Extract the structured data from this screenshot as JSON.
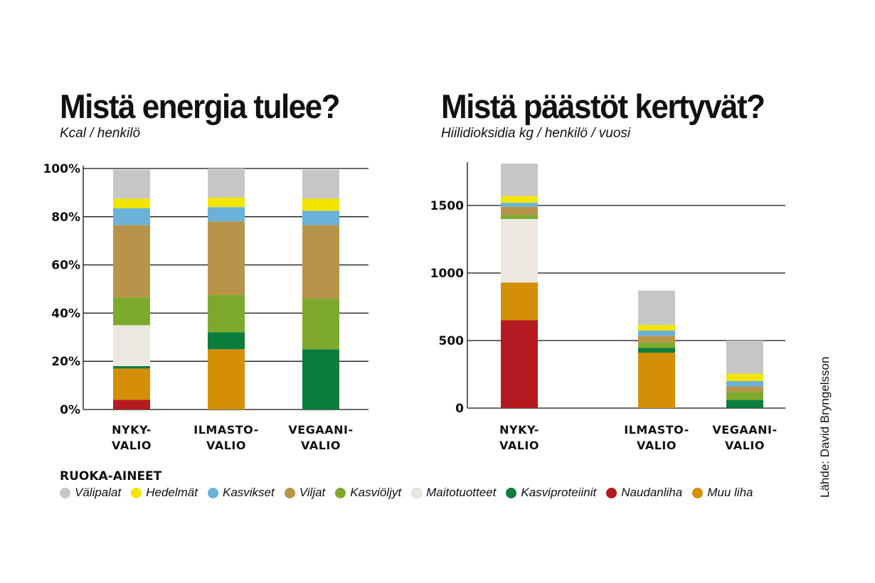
{
  "colors": {
    "Välipalat": "#c6c6c6",
    "Hedelmät": "#f2e500",
    "Kasvikset": "#6bb2d8",
    "Viljat": "#b8944a",
    "Kasviöljyt": "#7daa2d",
    "Maitotuotteet": "#ece8e1",
    "Kasviproteiinit": "#0b7d3c",
    "Naudanliha": "#b41a1f",
    "Muu liha": "#d48f06"
  },
  "chart_data": [
    {
      "type": "bar",
      "stacked": true,
      "title": "Mistä energia tulee?",
      "subtitle": "Kcal / henkilö",
      "categories": [
        "NYKY-\nVALIO",
        "ILMASTO-\nVALIO",
        "VEGAANI-\nVALIO"
      ],
      "ylim": [
        0,
        100
      ],
      "yticks": [
        0,
        20,
        40,
        60,
        80,
        100
      ],
      "ytick_labels": [
        "0%",
        "20%",
        "40%",
        "60%",
        "80%",
        "100%"
      ],
      "series": [
        {
          "name": "Naudanliha",
          "values": [
            4,
            0,
            0
          ]
        },
        {
          "name": "Muu liha",
          "values": [
            13,
            25,
            0
          ]
        },
        {
          "name": "Kasviproteiinit",
          "values": [
            1,
            7,
            25
          ]
        },
        {
          "name": "Maitotuotteet",
          "values": [
            17,
            0,
            0
          ]
        },
        {
          "name": "Kasviöljyt",
          "values": [
            11.5,
            15.5,
            21
          ]
        },
        {
          "name": "Viljat",
          "values": [
            30,
            30.5,
            30.5
          ]
        },
        {
          "name": "Kasvikset",
          "values": [
            7,
            6,
            6
          ]
        },
        {
          "name": "Hedelmät",
          "values": [
            4,
            4,
            5
          ]
        },
        {
          "name": "Välipalat",
          "values": [
            12,
            12,
            12
          ]
        }
      ]
    },
    {
      "type": "bar",
      "stacked": true,
      "title": "Mistä päästöt kertyvät?",
      "subtitle": "Hiilidioksidia kg / henkilö / vuosi",
      "categories": [
        "NYKY-\nVALIO",
        "ILMASTO-\nVALIO",
        "VEGAANI-\nVALIO"
      ],
      "ylim": [
        0,
        1800
      ],
      "yticks": [
        0,
        500,
        1000,
        1500
      ],
      "ytick_labels": [
        "0",
        "500",
        "1000",
        "1500"
      ],
      "series": [
        {
          "name": "Naudanliha",
          "values": [
            650,
            0,
            0
          ]
        },
        {
          "name": "Muu liha",
          "values": [
            280,
            410,
            0
          ]
        },
        {
          "name": "Kasviproteiinit",
          "values": [
            0,
            35,
            60
          ]
        },
        {
          "name": "Maitotuotteet",
          "values": [
            470,
            0,
            0
          ]
        },
        {
          "name": "Kasviöljyt",
          "values": [
            30,
            40,
            60
          ]
        },
        {
          "name": "Viljat",
          "values": [
            60,
            50,
            40
          ]
        },
        {
          "name": "Kasvikset",
          "values": [
            30,
            40,
            40
          ]
        },
        {
          "name": "Hedelmät",
          "values": [
            50,
            40,
            55
          ]
        },
        {
          "name": "Välipalat",
          "values": [
            240,
            255,
            245
          ]
        }
      ]
    }
  ],
  "legend": {
    "title": "RUOKA-AINEET",
    "items": [
      "Välipalat",
      "Hedelmät",
      "Kasvikset",
      "Viljat",
      "Kasviöljyt",
      "Maitotuotteet",
      "Kasviproteiinit",
      "Naudanliha",
      "Muu liha"
    ]
  },
  "source": "Lähde: David Bryngelsson"
}
